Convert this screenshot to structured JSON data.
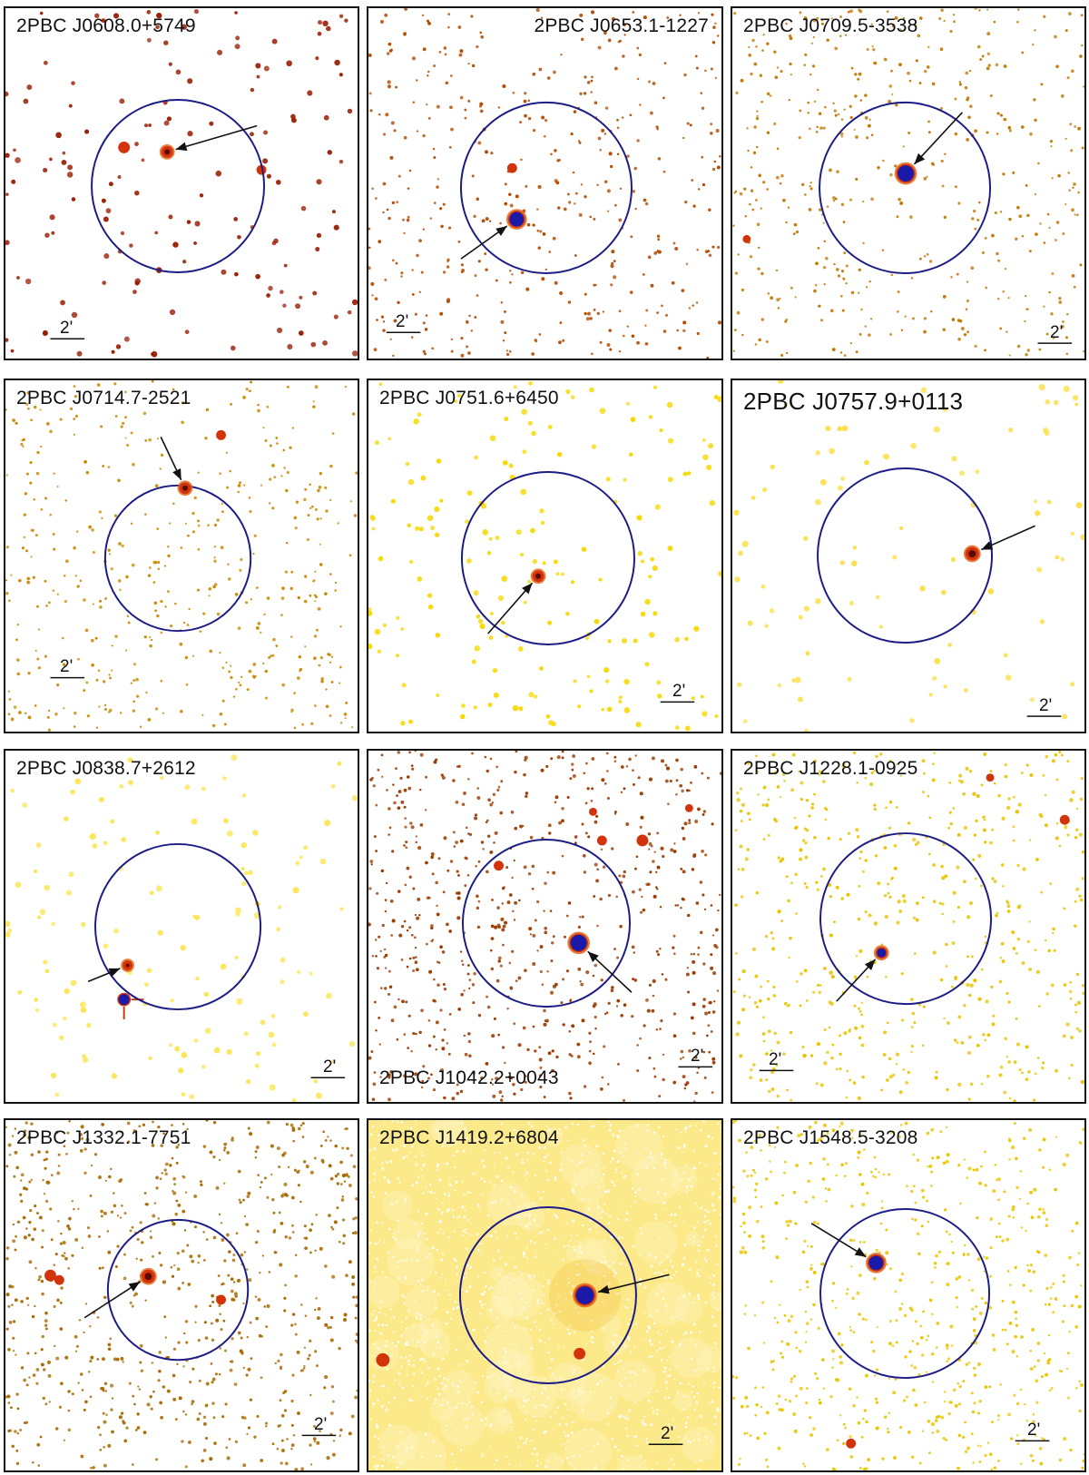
{
  "figure": {
    "scale_label": "2'",
    "panels": [
      {
        "id": "J0608.0+5749",
        "name": "2PBC J0608.0+5749",
        "bg": "#ffffff",
        "dot": "#9a1f05",
        "dot_density": 150,
        "dot_size": 2.6,
        "label_pos": "left"
      },
      {
        "id": "J0653.1-1227",
        "name": "2PBC J0653.1-1227",
        "bg": "#ffffff",
        "dot": "#b14a00",
        "dot_density": 420,
        "dot_size": 1.6,
        "label_pos": "right"
      },
      {
        "id": "J0709.5-3538",
        "name": "2PBC J0709.5-3538",
        "bg": "#ffffff",
        "dot": "#c07800",
        "dot_density": 450,
        "dot_size": 1.5,
        "label_pos": "left"
      },
      {
        "id": "J0714.7-2521",
        "name": "2PBC J0714.7-2521",
        "bg": "#ffffff",
        "dot": "#c98a00",
        "dot_density": 430,
        "dot_size": 1.5,
        "label_pos": "left"
      },
      {
        "id": "J0751.6+6450",
        "name": "2PBC J0751.6+6450",
        "bg": "#ffffff",
        "dot": "#f7d800",
        "dot_density": 180,
        "dot_size": 2.6,
        "label_pos": "left"
      },
      {
        "id": "J0757.9+0113",
        "name": "2PBC J0757.9+0113",
        "bg": "#ffffff",
        "dot": "#fbe04a",
        "dot_density": 90,
        "dot_size": 2.8,
        "label_pos": "left-big"
      },
      {
        "id": "J0838.7+2612",
        "name": "2PBC J0838.7+2612",
        "bg": "#ffffff",
        "dot": "#fbe655",
        "dot_density": 130,
        "dot_size": 2.8,
        "label_pos": "left"
      },
      {
        "id": "J1042.2+0043",
        "name": "2PBC J1042.2+0043",
        "bg": "#ffffff",
        "dot": "#9a3a00",
        "dot_density": 700,
        "dot_size": 1.6,
        "label_pos": "bottom-left"
      },
      {
        "id": "J1228.1-0925",
        "name": "2PBC J1228.1-0925",
        "bg": "#ffffff",
        "dot": "#e8c400",
        "dot_density": 520,
        "dot_size": 1.7,
        "label_pos": "left"
      },
      {
        "id": "J1332.1-7751",
        "name": "2PBC J1332.1-7751",
        "bg": "#ffffff",
        "dot": "#a86a00",
        "dot_density": 750,
        "dot_size": 1.6,
        "label_pos": "left"
      },
      {
        "id": "J1419.2+6804",
        "name": "2PBC J1419.2+6804",
        "bg": "#fbe98a",
        "dot": "#ffffff",
        "dot_density": 1400,
        "dot_size": 1.2,
        "label_pos": "left"
      },
      {
        "id": "J1548.5-3208",
        "name": "2PBC J1548.5-3208",
        "bg": "#ffffff",
        "dot": "#e9c600",
        "dot_density": 620,
        "dot_size": 1.6,
        "label_pos": "left"
      }
    ],
    "source_color": "#1b1aa8",
    "halo_color": "#d3330a",
    "circle_color": "#1c1c86"
  }
}
